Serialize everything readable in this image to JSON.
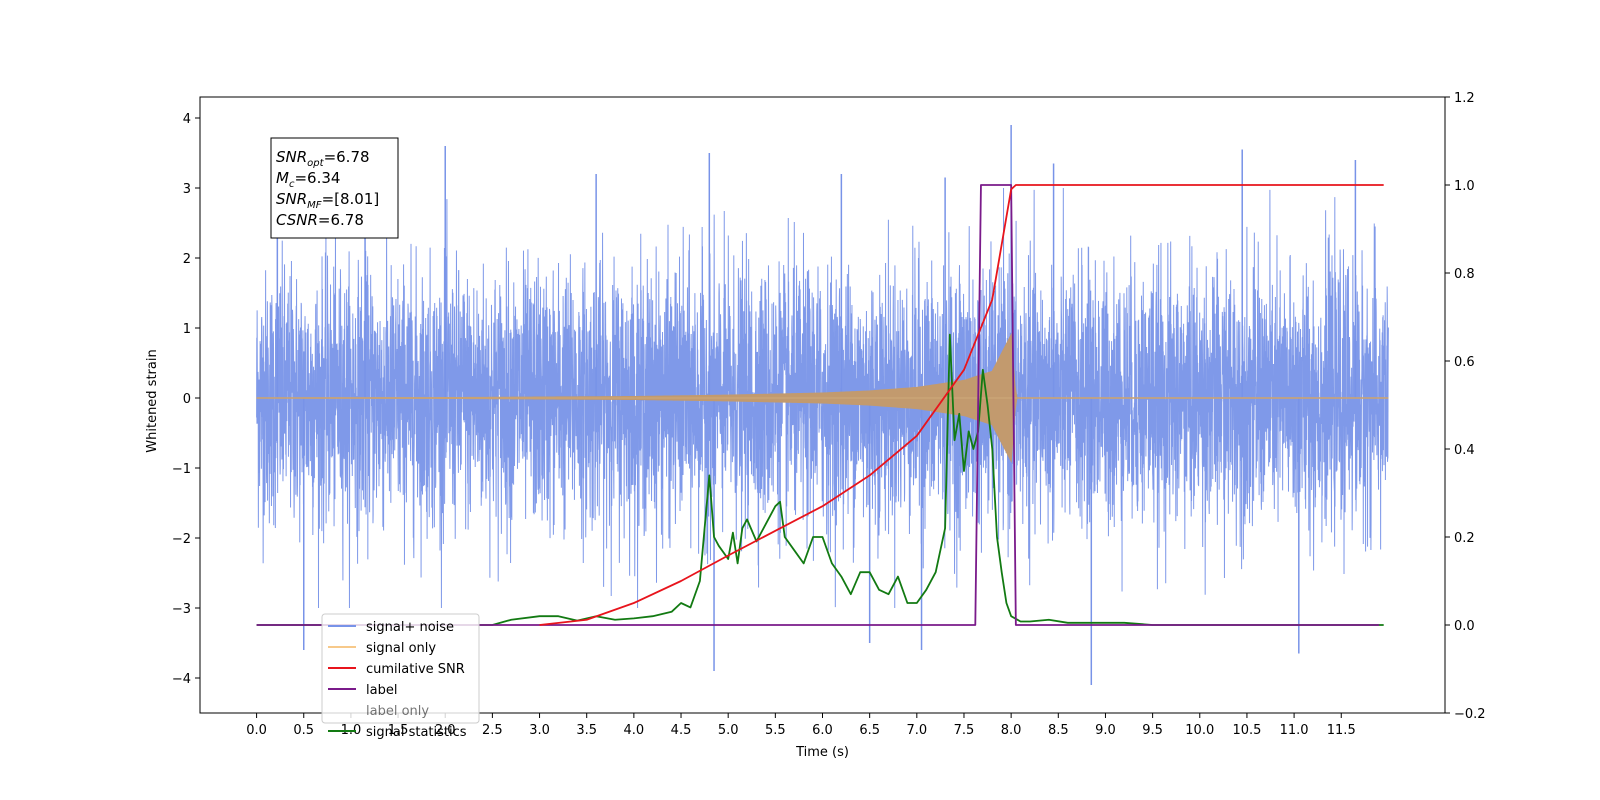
{
  "chart_data": {
    "type": "line",
    "xlabel": "Time (s)",
    "ylabel": "Whitened strain",
    "xlim": [
      -0.6,
      12.6
    ],
    "ylim": [
      -4.5,
      4.3
    ],
    "y2lim": [
      -0.2,
      1.2
    ],
    "grid": false,
    "legend_position": "lower-left",
    "x_ticks": [
      "0.0",
      "0.5",
      "1.0",
      "1.5",
      "2.0",
      "2.5",
      "3.0",
      "3.5",
      "4.0",
      "4.5",
      "5.0",
      "5.5",
      "6.0",
      "6.5",
      "7.0",
      "7.5",
      "8.0",
      "8.5",
      "9.0",
      "9.5",
      "10.0",
      "10.5",
      "11.0",
      "11.5"
    ],
    "y_ticks": [
      "4",
      "3",
      "2",
      "1",
      "0",
      "−1",
      "−2",
      "−3",
      "−4"
    ],
    "y2_ticks": [
      "1.2",
      "1.0",
      "0.8",
      "0.6",
      "0.4",
      "0.2",
      "0.0",
      "−0.2"
    ],
    "annotation": [
      {
        "base": "SNR",
        "sub": "opt",
        "rest": "=6.78"
      },
      {
        "base": "M",
        "sub": "c",
        "rest": "=6.34"
      },
      {
        "base": "SNR",
        "sub": "MF",
        "rest": "=[8.01]"
      },
      {
        "base": "CSNR",
        "sub": "",
        "rest": "=6.78"
      }
    ],
    "series": [
      {
        "name": "signal+ noise",
        "axis": "left",
        "color": "#7893e8",
        "description": "whitened noise plus signal, approx. Gaussian, std ~0.9, peaks to ~3.9",
        "x_range": [
          0.0,
          12.0
        ],
        "peak_samples": [
          [
            0.22,
            3.4
          ],
          [
            1.15,
            3.3
          ],
          [
            2.0,
            3.6
          ],
          [
            3.6,
            3.2
          ],
          [
            4.8,
            3.5
          ],
          [
            6.2,
            3.2
          ],
          [
            7.3,
            3.15
          ],
          [
            8.0,
            3.9
          ],
          [
            8.45,
            3.35
          ],
          [
            10.45,
            3.55
          ],
          [
            11.65,
            3.4
          ],
          [
            0.5,
            -3.6
          ],
          [
            4.85,
            -3.9
          ],
          [
            6.5,
            -3.5
          ],
          [
            7.05,
            -3.6
          ],
          [
            8.85,
            -4.1
          ],
          [
            11.05,
            -3.65
          ]
        ]
      },
      {
        "name": "signal only",
        "axis": "left",
        "color": "#f5b25a",
        "description": "chirp envelope in strain units, grows to ~0.9 at merger",
        "x": [
          0.0,
          2.0,
          4.0,
          5.0,
          6.0,
          6.5,
          7.0,
          7.5,
          7.8,
          8.0,
          8.05,
          12.0
        ],
        "envelope": [
          0.0,
          0.005,
          0.02,
          0.04,
          0.07,
          0.1,
          0.15,
          0.25,
          0.38,
          0.9,
          0.0,
          0.0
        ]
      },
      {
        "name": "cumilative SNR",
        "axis": "right",
        "color": "#e8141c",
        "x": [
          3.0,
          3.5,
          4.0,
          4.5,
          5.0,
          5.5,
          6.0,
          6.5,
          7.0,
          7.5,
          7.8,
          8.0,
          8.05,
          11.95
        ],
        "y": [
          0.0,
          0.012,
          0.05,
          0.1,
          0.158,
          0.214,
          0.27,
          0.34,
          0.43,
          0.58,
          0.74,
          0.99,
          1.0,
          1.0
        ]
      },
      {
        "name": "label",
        "axis": "right",
        "color": "#7a1a8a",
        "x": [
          0.0,
          7.62,
          7.68,
          8.0,
          8.05,
          11.9
        ],
        "y": [
          0.0,
          0.0,
          1.0,
          1.0,
          0.0,
          0.0
        ]
      },
      {
        "name": "label only",
        "axis": "right",
        "color": "#7a1a8a",
        "hidden_in_plot": true
      },
      {
        "name": "signal statistics",
        "axis": "right",
        "color": "#127a12",
        "x": [
          0.0,
          2.5,
          2.7,
          3.0,
          3.2,
          3.4,
          3.6,
          3.8,
          4.0,
          4.2,
          4.4,
          4.5,
          4.6,
          4.7,
          4.8,
          4.85,
          4.9,
          5.0,
          5.05,
          5.1,
          5.15,
          5.2,
          5.3,
          5.4,
          5.5,
          5.55,
          5.6,
          5.7,
          5.8,
          5.9,
          6.0,
          6.1,
          6.2,
          6.3,
          6.4,
          6.5,
          6.6,
          6.7,
          6.8,
          6.9,
          7.0,
          7.1,
          7.2,
          7.3,
          7.35,
          7.4,
          7.45,
          7.5,
          7.55,
          7.6,
          7.65,
          7.7,
          7.75,
          7.8,
          7.85,
          7.9,
          7.95,
          8.0,
          8.1,
          8.2,
          8.3,
          8.4,
          8.6,
          8.8,
          9.0,
          9.2,
          9.5,
          11.95
        ],
        "y": [
          0.0,
          0.0,
          0.012,
          0.02,
          0.02,
          0.01,
          0.02,
          0.012,
          0.015,
          0.02,
          0.03,
          0.05,
          0.04,
          0.1,
          0.34,
          0.2,
          0.18,
          0.15,
          0.21,
          0.14,
          0.22,
          0.24,
          0.19,
          0.23,
          0.27,
          0.28,
          0.2,
          0.17,
          0.14,
          0.2,
          0.2,
          0.14,
          0.11,
          0.07,
          0.12,
          0.12,
          0.08,
          0.07,
          0.11,
          0.05,
          0.05,
          0.08,
          0.12,
          0.22,
          0.66,
          0.42,
          0.48,
          0.35,
          0.44,
          0.4,
          0.44,
          0.58,
          0.5,
          0.4,
          0.2,
          0.12,
          0.05,
          0.02,
          0.008,
          0.008,
          0.01,
          0.012,
          0.005,
          0.005,
          0.005,
          0.005,
          0.0,
          0.0
        ]
      }
    ]
  }
}
